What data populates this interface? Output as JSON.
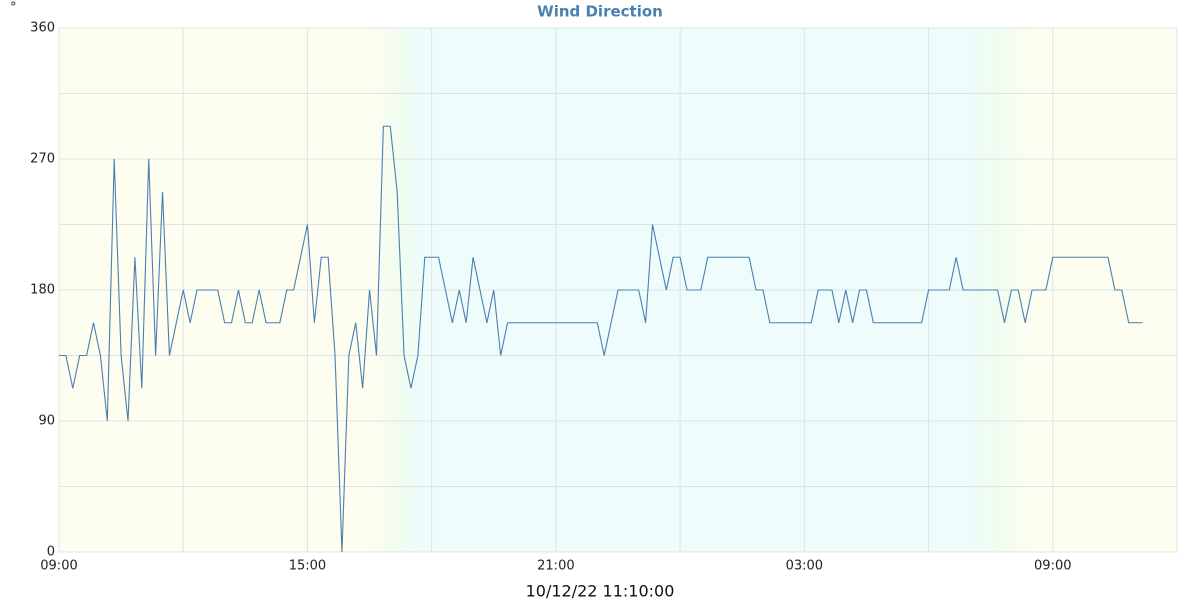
{
  "chart_data": {
    "type": "line",
    "title": "Wind Direction",
    "y_label": "°",
    "x_label": "10/12/22 11:10:00",
    "x": [
      0,
      10,
      20,
      30,
      40,
      50,
      60,
      70,
      80,
      90,
      100,
      110,
      120,
      130,
      140,
      150,
      160,
      170,
      180,
      190,
      200,
      210,
      220,
      230,
      240,
      250,
      260,
      270,
      280,
      290,
      300,
      310,
      320,
      330,
      340,
      350,
      360,
      370,
      380,
      390,
      400,
      410,
      420,
      430,
      440,
      450,
      460,
      470,
      480,
      490,
      500,
      510,
      520,
      530,
      540,
      550,
      560,
      570,
      580,
      590,
      600,
      610,
      620,
      630,
      640,
      650,
      660,
      670,
      680,
      690,
      700,
      710,
      720,
      730,
      740,
      750,
      760,
      770,
      780,
      790,
      800,
      810,
      820,
      830,
      840,
      850,
      860,
      870,
      880,
      890,
      900,
      910,
      920,
      930,
      940,
      950,
      960,
      970,
      980,
      990,
      1000,
      1010,
      1020,
      1030,
      1040,
      1050,
      1060,
      1070,
      1080,
      1090,
      1100,
      1110,
      1120,
      1130,
      1140,
      1150,
      1160,
      1170,
      1180,
      1190,
      1200,
      1210,
      1220,
      1230,
      1240,
      1250,
      1260,
      1270,
      1280,
      1290,
      1300,
      1310,
      1320,
      1330,
      1340,
      1350,
      1360,
      1370,
      1380,
      1390,
      1400,
      1410,
      1420,
      1430,
      1440,
      1450,
      1460,
      1470,
      1480,
      1490,
      1500,
      1510,
      1520,
      1530,
      1540,
      1550,
      1560,
      1570
    ],
    "values": [
      135,
      135,
      112.5,
      135,
      135,
      157.5,
      135,
      90,
      270,
      135,
      90,
      202.5,
      112.5,
      270,
      135,
      247.5,
      135,
      157.5,
      180,
      157.5,
      180,
      180,
      180,
      180,
      157.5,
      157.5,
      180,
      157.5,
      157.5,
      180,
      157.5,
      157.5,
      157.5,
      180,
      180,
      202.5,
      225,
      157.5,
      202.5,
      202.5,
      135,
      0,
      135,
      157.5,
      112.5,
      180,
      135,
      292.5,
      292.5,
      247.5,
      135,
      112.5,
      135,
      202.5,
      202.5,
      202.5,
      180,
      157.5,
      180,
      157.5,
      202.5,
      180,
      157.5,
      180,
      135,
      157.5,
      157.5,
      157.5,
      157.5,
      157.5,
      157.5,
      157.5,
      157.5,
      157.5,
      157.5,
      157.5,
      157.5,
      157.5,
      157.5,
      135,
      157.5,
      180,
      180,
      180,
      180,
      157.5,
      225,
      202.5,
      180,
      202.5,
      202.5,
      180,
      180,
      180,
      202.5,
      202.5,
      202.5,
      202.5,
      202.5,
      202.5,
      202.5,
      180,
      180,
      157.5,
      157.5,
      157.5,
      157.5,
      157.5,
      157.5,
      157.5,
      180,
      180,
      180,
      157.5,
      180,
      157.5,
      180,
      180,
      157.5,
      157.5,
      157.5,
      157.5,
      157.5,
      157.5,
      157.5,
      157.5,
      180,
      180,
      180,
      180,
      202.5,
      180,
      180,
      180,
      180,
      180,
      180,
      157.5,
      180,
      180,
      157.5,
      180,
      180,
      180,
      202.5,
      202.5,
      202.5,
      202.5,
      202.5,
      202.5,
      202.5,
      202.5,
      202.5,
      180,
      180,
      157.5,
      157.5,
      157.5
    ],
    "color": "#4a7fb2",
    "xlim": [
      0,
      1620
    ],
    "xticks": [
      {
        "value": 0,
        "label": "09:00"
      },
      {
        "value": 360,
        "label": "15:00"
      },
      {
        "value": 720,
        "label": "21:00"
      },
      {
        "value": 1080,
        "label": "03:00"
      },
      {
        "value": 1440,
        "label": "09:00"
      }
    ],
    "xgrid_minor": [
      180,
      540,
      900,
      1260
    ],
    "ylim": [
      0,
      360
    ],
    "yticks": [
      0,
      90,
      180,
      270,
      360
    ],
    "ygrid_minor": [
      45,
      135,
      225,
      315
    ],
    "grid": true
  }
}
